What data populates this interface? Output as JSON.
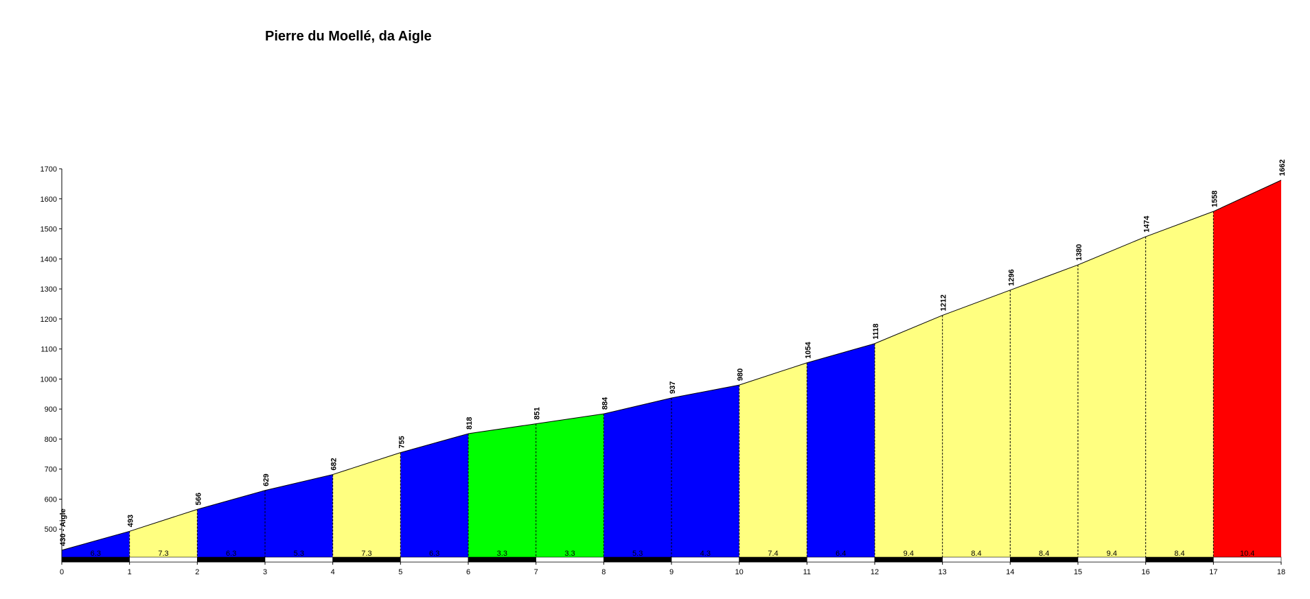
{
  "chart_data": {
    "type": "area",
    "title": "Pierre du Moellé, da Aigle",
    "xlabel": "",
    "ylabel": "",
    "xlim": [
      0,
      18
    ],
    "ylim": [
      400,
      1700
    ],
    "x_ticks": [
      0,
      1,
      2,
      3,
      4,
      5,
      6,
      7,
      8,
      9,
      10,
      11,
      12,
      13,
      14,
      15,
      16,
      17,
      18
    ],
    "y_ticks": [
      500,
      600,
      700,
      800,
      900,
      1000,
      1100,
      1200,
      1300,
      1400,
      1500,
      1600,
      1700
    ],
    "x": [
      0,
      1,
      2,
      3,
      4,
      5,
      6,
      7,
      8,
      9,
      10,
      11,
      12,
      13,
      14,
      15,
      16,
      17,
      18
    ],
    "elevation": [
      430,
      493,
      566,
      629,
      682,
      755,
      818,
      851,
      884,
      937,
      980,
      1054,
      1118,
      1212,
      1296,
      1380,
      1474,
      1558,
      1662
    ],
    "point_labels": [
      "430 - Aigle",
      "493",
      "566",
      "629",
      "682",
      "755",
      "818",
      "851",
      "884",
      "937",
      "980",
      "1054",
      "1118",
      "1212",
      "1296",
      "1380",
      "1474",
      "1558",
      "1662"
    ],
    "gradients": [
      "6.3",
      "7.3",
      "6.3",
      "5.3",
      "7.3",
      "6.3",
      "3.3",
      "3.3",
      "5.3",
      "4.3",
      "7.4",
      "6.4",
      "9.4",
      "8.4",
      "8.4",
      "9.4",
      "8.4",
      "10.4"
    ],
    "gradient_colors": {
      "low": "#00ff00",
      "medium": "#0000ff",
      "high": "#ffff80",
      "very_high": "#ff0000"
    }
  }
}
